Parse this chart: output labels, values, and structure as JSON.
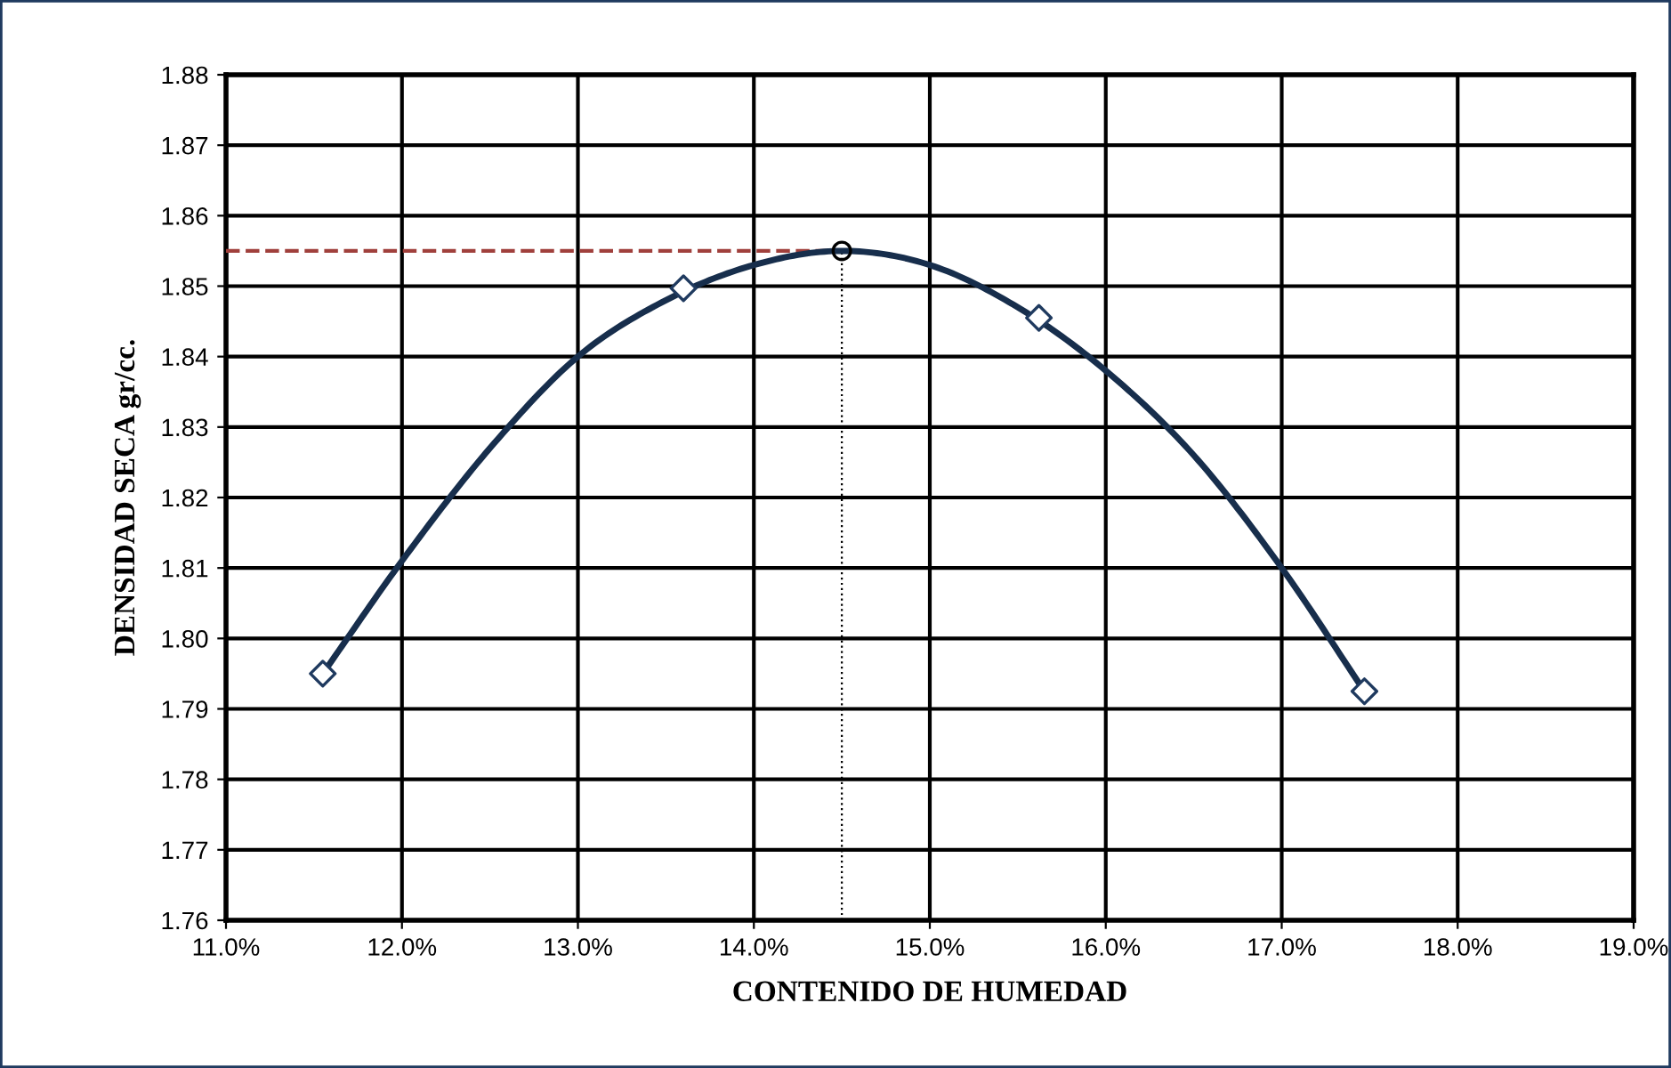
{
  "chart_data": {
    "type": "line",
    "xlabel": "CONTENIDO DE HUMEDAD",
    "ylabel": "DENSIDAD SECA gr/cc.",
    "series": [
      {
        "color": "#172e4c",
        "marker": "none",
        "x": [
          11.55,
          12.0,
          12.5,
          13.0,
          13.5,
          14.0,
          14.5,
          15.0,
          15.5,
          16.0,
          16.5,
          17.0,
          17.47
        ],
        "values": [
          1.795,
          1.811,
          1.827,
          1.84,
          1.848,
          1.853,
          1.855,
          1.853,
          1.847,
          1.838,
          1.826,
          1.81,
          1.7925
        ]
      },
      {
        "type": "scatter",
        "color": "#1f3a5f",
        "marker": "diamond",
        "x": [
          11.55,
          13.6,
          15.62,
          17.47
        ],
        "values": [
          1.795,
          1.8497,
          1.8455,
          1.7925
        ]
      },
      {
        "type": "scatter",
        "color": "#000000",
        "marker": "circle",
        "x": [
          14.5
        ],
        "values": [
          1.855
        ]
      }
    ],
    "ref_lines": [
      {
        "axis": "y",
        "value": 1.855,
        "color": "#a0403c",
        "line_style": "dashed"
      },
      {
        "axis": "x",
        "value": 14.5,
        "color": "#000000",
        "line_style": "dotted"
      }
    ],
    "xlim": [
      11,
      19
    ],
    "xticks": [
      {
        "value": 11,
        "label": "11.0%"
      },
      {
        "value": 12,
        "label": "12.0%"
      },
      {
        "value": 13,
        "label": "13.0%"
      },
      {
        "value": 14,
        "label": "14.0%"
      },
      {
        "value": 15,
        "label": "15.0%"
      },
      {
        "value": 16,
        "label": "16.0%"
      },
      {
        "value": 17,
        "label": "17.0%"
      },
      {
        "value": 18,
        "label": "18.0%"
      },
      {
        "value": 19,
        "label": "19.0%"
      }
    ],
    "ylim": [
      1.76,
      1.88
    ],
    "yticks": [
      {
        "value": 1.76,
        "label": "1.76"
      },
      {
        "value": 1.77,
        "label": "1.77"
      },
      {
        "value": 1.78,
        "label": "1.78"
      },
      {
        "value": 1.79,
        "label": "1.79"
      },
      {
        "value": 1.8,
        "label": "1.80"
      },
      {
        "value": 1.81,
        "label": "1.81"
      },
      {
        "value": 1.82,
        "label": "1.82"
      },
      {
        "value": 1.83,
        "label": "1.83"
      },
      {
        "value": 1.84,
        "label": "1.84"
      },
      {
        "value": 1.85,
        "label": "1.85"
      },
      {
        "value": 1.86,
        "label": "1.86"
      },
      {
        "value": 1.87,
        "label": "1.87"
      },
      {
        "value": 1.88,
        "label": "1.88"
      }
    ],
    "grid": true
  }
}
